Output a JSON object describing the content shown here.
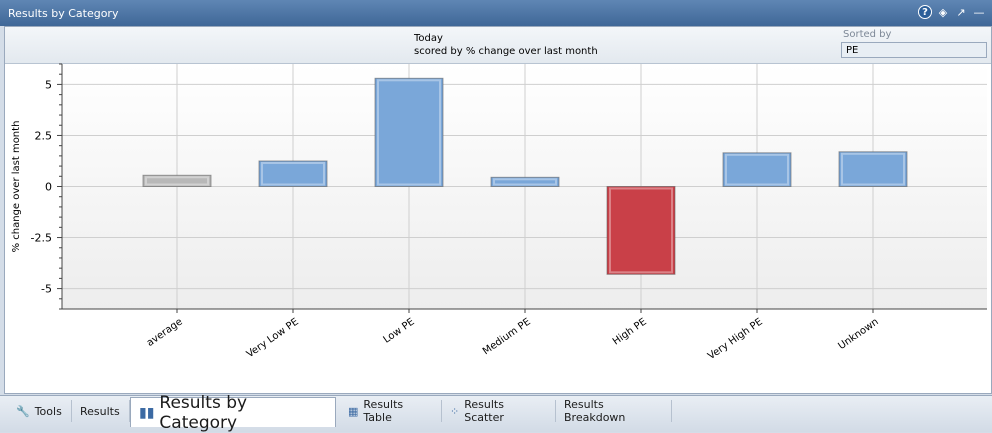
{
  "window": {
    "title": "Results by Category"
  },
  "header": {
    "line1": "Today",
    "line2": "scored by % change over last month",
    "sorted_label": "Sorted by",
    "sorted_value": "PE"
  },
  "chart_data": {
    "type": "bar",
    "categories": [
      "average",
      "Very Low PE",
      "Low PE",
      "Medium PE",
      "High PE",
      "Very High PE",
      "Unknown"
    ],
    "values": [
      0.55,
      1.25,
      5.3,
      0.45,
      -4.3,
      1.65,
      1.7
    ],
    "bar_colors": [
      "#b8b8b8",
      "#7aa7d9",
      "#7aa7d9",
      "#7aa7d9",
      "#c94048",
      "#7aa7d9",
      "#7aa7d9"
    ],
    "ylabel": "% change over last month",
    "ylim": [
      -6,
      6
    ],
    "yticks": [
      5,
      2.5,
      0,
      -2.5,
      -5
    ],
    "ytick_labels": [
      "5",
      "2.5",
      "0",
      "-2.5",
      "-5"
    ],
    "grid": true
  },
  "tabs": [
    {
      "label": "Tools",
      "icon": "wrench-icon"
    },
    {
      "label": "Results",
      "icon": ""
    },
    {
      "label": "Results by Category",
      "icon": "bar-chart-icon"
    },
    {
      "label": "Results Table",
      "icon": "table-icon"
    },
    {
      "label": "Results Scatter",
      "icon": "scatter-icon"
    },
    {
      "label": "Results Breakdown",
      "icon": ""
    }
  ],
  "colors": {
    "accent": "#3f6797",
    "positive": "#7aa7d9",
    "negative": "#c94048",
    "neutral": "#b8b8b8"
  }
}
